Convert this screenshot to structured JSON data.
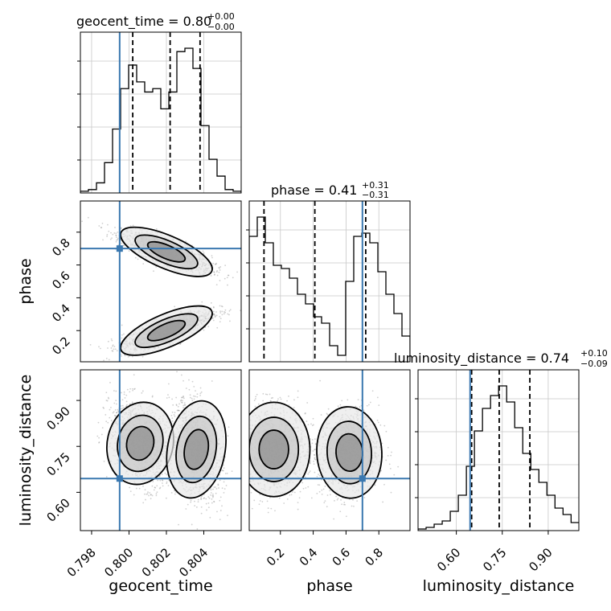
{
  "chart_data": {
    "type": "corner",
    "parameters": [
      "geocent_time",
      "phase",
      "luminosity_distance"
    ],
    "truths": {
      "geocent_time": 0.7995,
      "phase": 0.7,
      "luminosity_distance": 0.645
    },
    "truth_color": "#3a78b0",
    "axis_ranges": {
      "geocent_time": [
        0.7974,
        0.806
      ],
      "phase": [
        0.01,
        0.99
      ],
      "luminosity_distance": [
        0.475,
        1.0
      ]
    },
    "titles": [
      {
        "param": "geocent_time",
        "label": "geocent_time = 0.80",
        "plus": "+0.00",
        "minus": "−0.00"
      },
      {
        "param": "phase",
        "label": "phase = 0.41",
        "plus": "+0.31",
        "minus": "−0.31"
      },
      {
        "param": "luminosity_distance",
        "label": "luminosity_distance = 0.74",
        "plus": "+0.10",
        "minus": "−0.09"
      }
    ],
    "quantiles": {
      "geocent_time": [
        0.8002,
        0.8022,
        0.8038
      ],
      "phase": [
        0.1,
        0.41,
        0.72
      ],
      "luminosity_distance": [
        0.65,
        0.74,
        0.84
      ]
    },
    "ticks": {
      "geocent_time": [
        "0.798",
        "0.800",
        "0.802",
        "0.804"
      ],
      "phase": [
        "0.2",
        "0.4",
        "0.6",
        "0.8"
      ],
      "luminosity_distance": [
        "0.60",
        "0.75",
        "0.90"
      ]
    },
    "tick_values": {
      "geocent_time": [
        0.798,
        0.8,
        0.802,
        0.804
      ],
      "phase": [
        0.2,
        0.4,
        0.6,
        0.8
      ],
      "luminosity_distance": [
        0.6,
        0.75,
        0.9
      ]
    },
    "histograms": {
      "geocent_time": {
        "edges_start": 0.7974,
        "bin_width": 0.00043,
        "counts": [
          1,
          2,
          6,
          18,
          38,
          62,
          76,
          66,
          60,
          62,
          50,
          60,
          84,
          86,
          74,
          40,
          20,
          10,
          2,
          1
        ]
      },
      "phase": {
        "edges_start": 0.01,
        "bin_width": 0.049,
        "counts": [
          78,
          90,
          74,
          60,
          58,
          52,
          42,
          36,
          28,
          24,
          10,
          4,
          50,
          78,
          80,
          74,
          56,
          42,
          30,
          16
        ]
      },
      "luminosity_distance": {
        "edges_start": 0.475,
        "bin_width": 0.0263,
        "counts": [
          1,
          2,
          4,
          6,
          12,
          22,
          40,
          62,
          76,
          84,
          90,
          80,
          64,
          48,
          38,
          30,
          22,
          14,
          10,
          5
        ]
      }
    },
    "grid": true,
    "hist_style": "step",
    "contour_color": "#000000"
  }
}
